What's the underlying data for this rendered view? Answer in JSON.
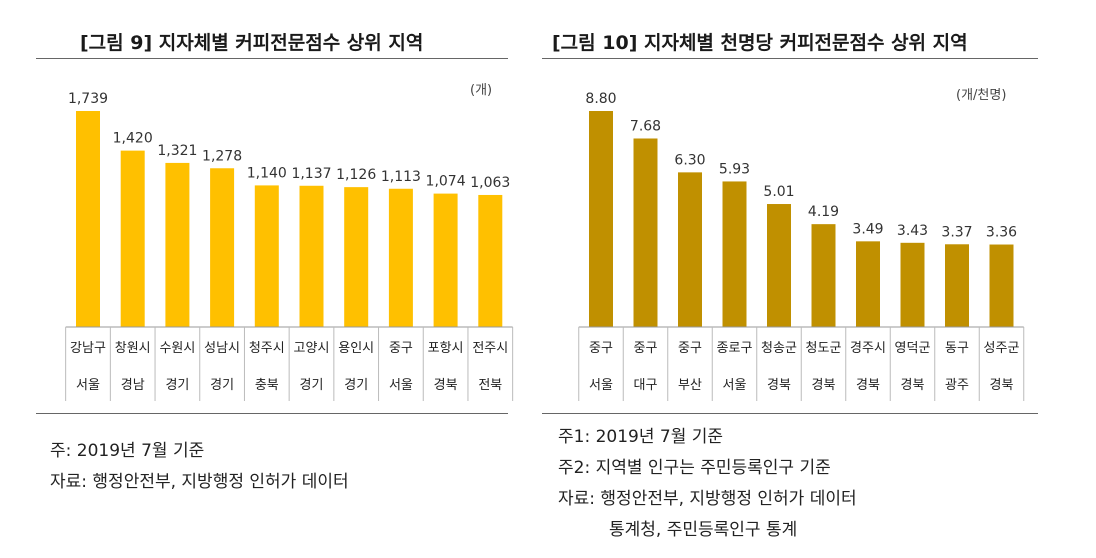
{
  "chart_data": [
    {
      "type": "bar",
      "title": "[그림 9] 지자체별 커피전문점수 상위 지역",
      "unit": "(개)",
      "color": "#FFC000",
      "categories": [
        "강남구",
        "창원시",
        "수원시",
        "성남시",
        "청주시",
        "고양시",
        "용인시",
        "중구",
        "포항시",
        "전주시"
      ],
      "regions": [
        "서울",
        "경남",
        "경기",
        "경기",
        "충북",
        "경기",
        "경기",
        "서울",
        "경북",
        "전북"
      ],
      "values": [
        1739,
        1420,
        1321,
        1278,
        1140,
        1137,
        1126,
        1113,
        1074,
        1063
      ],
      "value_labels": [
        "1,739",
        "1,420",
        "1,321",
        "1,278",
        "1,140",
        "1,137",
        "1,126",
        "1,113",
        "1,074",
        "1,063"
      ],
      "ylim": [
        0,
        1739
      ],
      "notes": [
        "주: 2019년 7월 기준",
        "자료: 행정안전부, 지방행정 인허가 데이터"
      ]
    },
    {
      "type": "bar",
      "title": "[그림 10] 지자체별 천명당 커피전문점수 상위 지역",
      "unit": "(개/천명)",
      "color": "#C09000",
      "categories": [
        "중구",
        "중구",
        "중구",
        "종로구",
        "청송군",
        "청도군",
        "경주시",
        "영덕군",
        "동구",
        "성주군"
      ],
      "regions": [
        "서울",
        "대구",
        "부산",
        "서울",
        "경북",
        "경북",
        "경북",
        "경북",
        "광주",
        "경북"
      ],
      "values": [
        8.8,
        7.68,
        6.3,
        5.93,
        5.01,
        4.19,
        3.49,
        3.43,
        3.37,
        3.36
      ],
      "value_labels": [
        "8.80",
        "7.68",
        "6.30",
        "5.93",
        "5.01",
        "4.19",
        "3.49",
        "3.43",
        "3.37",
        "3.36"
      ],
      "ylim": [
        0,
        8.8
      ],
      "notes": [
        "주1: 2019년 7월 기준",
        "주2: 지역별 인구는 주민등록인구 기준",
        "자료: 행정안전부, 지방행정 인허가 데이터",
        "통계청, 주민등록인구 통계"
      ]
    }
  ]
}
